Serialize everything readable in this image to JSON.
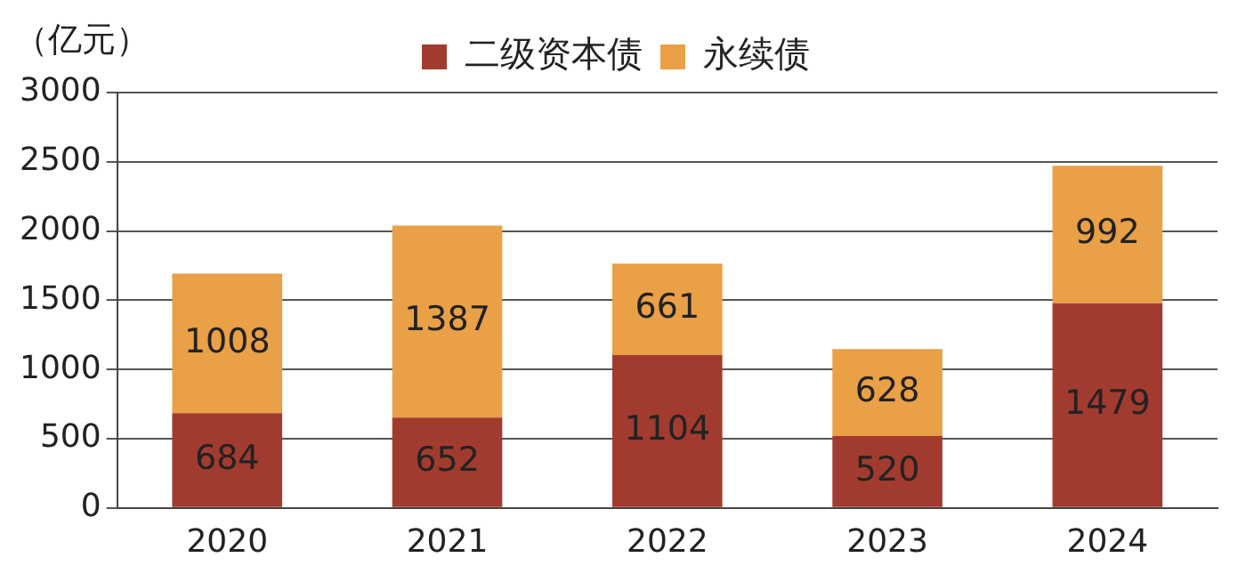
{
  "chart_data": {
    "type": "bar",
    "ylabel": "（亿元）",
    "categories": [
      "2020",
      "2021",
      "2022",
      "2023",
      "2024"
    ],
    "stacked": true,
    "series": [
      {
        "name": "二级资本债",
        "color": "#a23b2f",
        "values": [
          684,
          652,
          1104,
          520,
          1479
        ]
      },
      {
        "name": "永续债",
        "color": "#e9a046",
        "values": [
          1008,
          1387,
          661,
          628,
          992
        ]
      }
    ],
    "ylim": [
      0,
      3000
    ],
    "yticks": [
      0,
      500,
      1000,
      1500,
      2000,
      2500,
      3000
    ],
    "grid": "y",
    "legend": "top",
    "data_labels": true
  }
}
